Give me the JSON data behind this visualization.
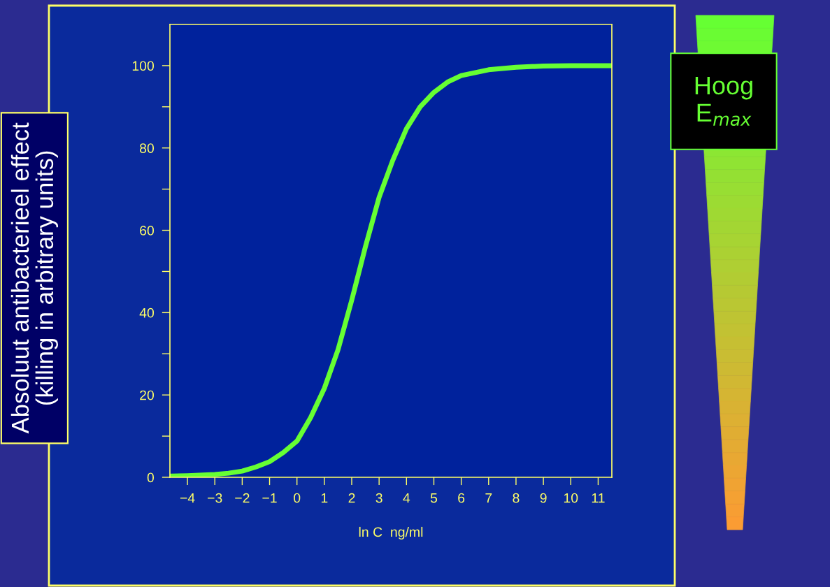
{
  "chart_data": {
    "type": "line",
    "ylabel": "Absoluut antibacterieel effect\n(killing in arbitrary units)",
    "xlabel": "ln C  ng/ml",
    "annotations": [
      "Hoog\nE$_{max}$"
    ],
    "x": [
      -4.6,
      -4,
      -3,
      -2.5,
      -2,
      -1.5,
      -1,
      -0.5,
      0,
      0.5,
      1,
      1.5,
      2,
      2.5,
      3,
      3.5,
      4,
      4.5,
      5,
      5.5,
      6,
      7,
      8,
      9,
      10,
      11.5
    ],
    "series": [
      {
        "color": "#66ff33",
        "values": [
          0.3,
          0.4,
          0.7,
          1,
          1.5,
          2.5,
          3.8,
          6,
          8.8,
          14.5,
          21.6,
          31,
          43,
          56,
          68,
          77,
          84.7,
          90,
          93.5,
          96,
          97.6,
          99,
          99.6,
          99.9,
          100,
          100
        ]
      }
    ],
    "xlim": [
      -4.64,
      11.5
    ],
    "xticks": [
      {
        "value": -4,
        "label": "−4"
      },
      {
        "value": -3,
        "label": "−3"
      },
      {
        "value": -2,
        "label": "−2"
      },
      {
        "value": -1,
        "label": "−1"
      },
      0,
      1,
      2,
      3,
      4,
      5,
      6,
      7,
      8,
      9,
      10,
      11
    ],
    "ylim": [
      0,
      110
    ],
    "yticks": [
      0,
      {
        "value": 10,
        "label": null
      },
      20,
      {
        "value": 30,
        "label": null
      },
      40,
      {
        "value": 50,
        "label": null
      },
      60,
      {
        "value": 70,
        "label": null
      },
      80,
      {
        "value": 90,
        "label": null
      },
      100
    ],
    "grid": false,
    "legend": false,
    "marker": "none",
    "line_style": "solid"
  }
}
